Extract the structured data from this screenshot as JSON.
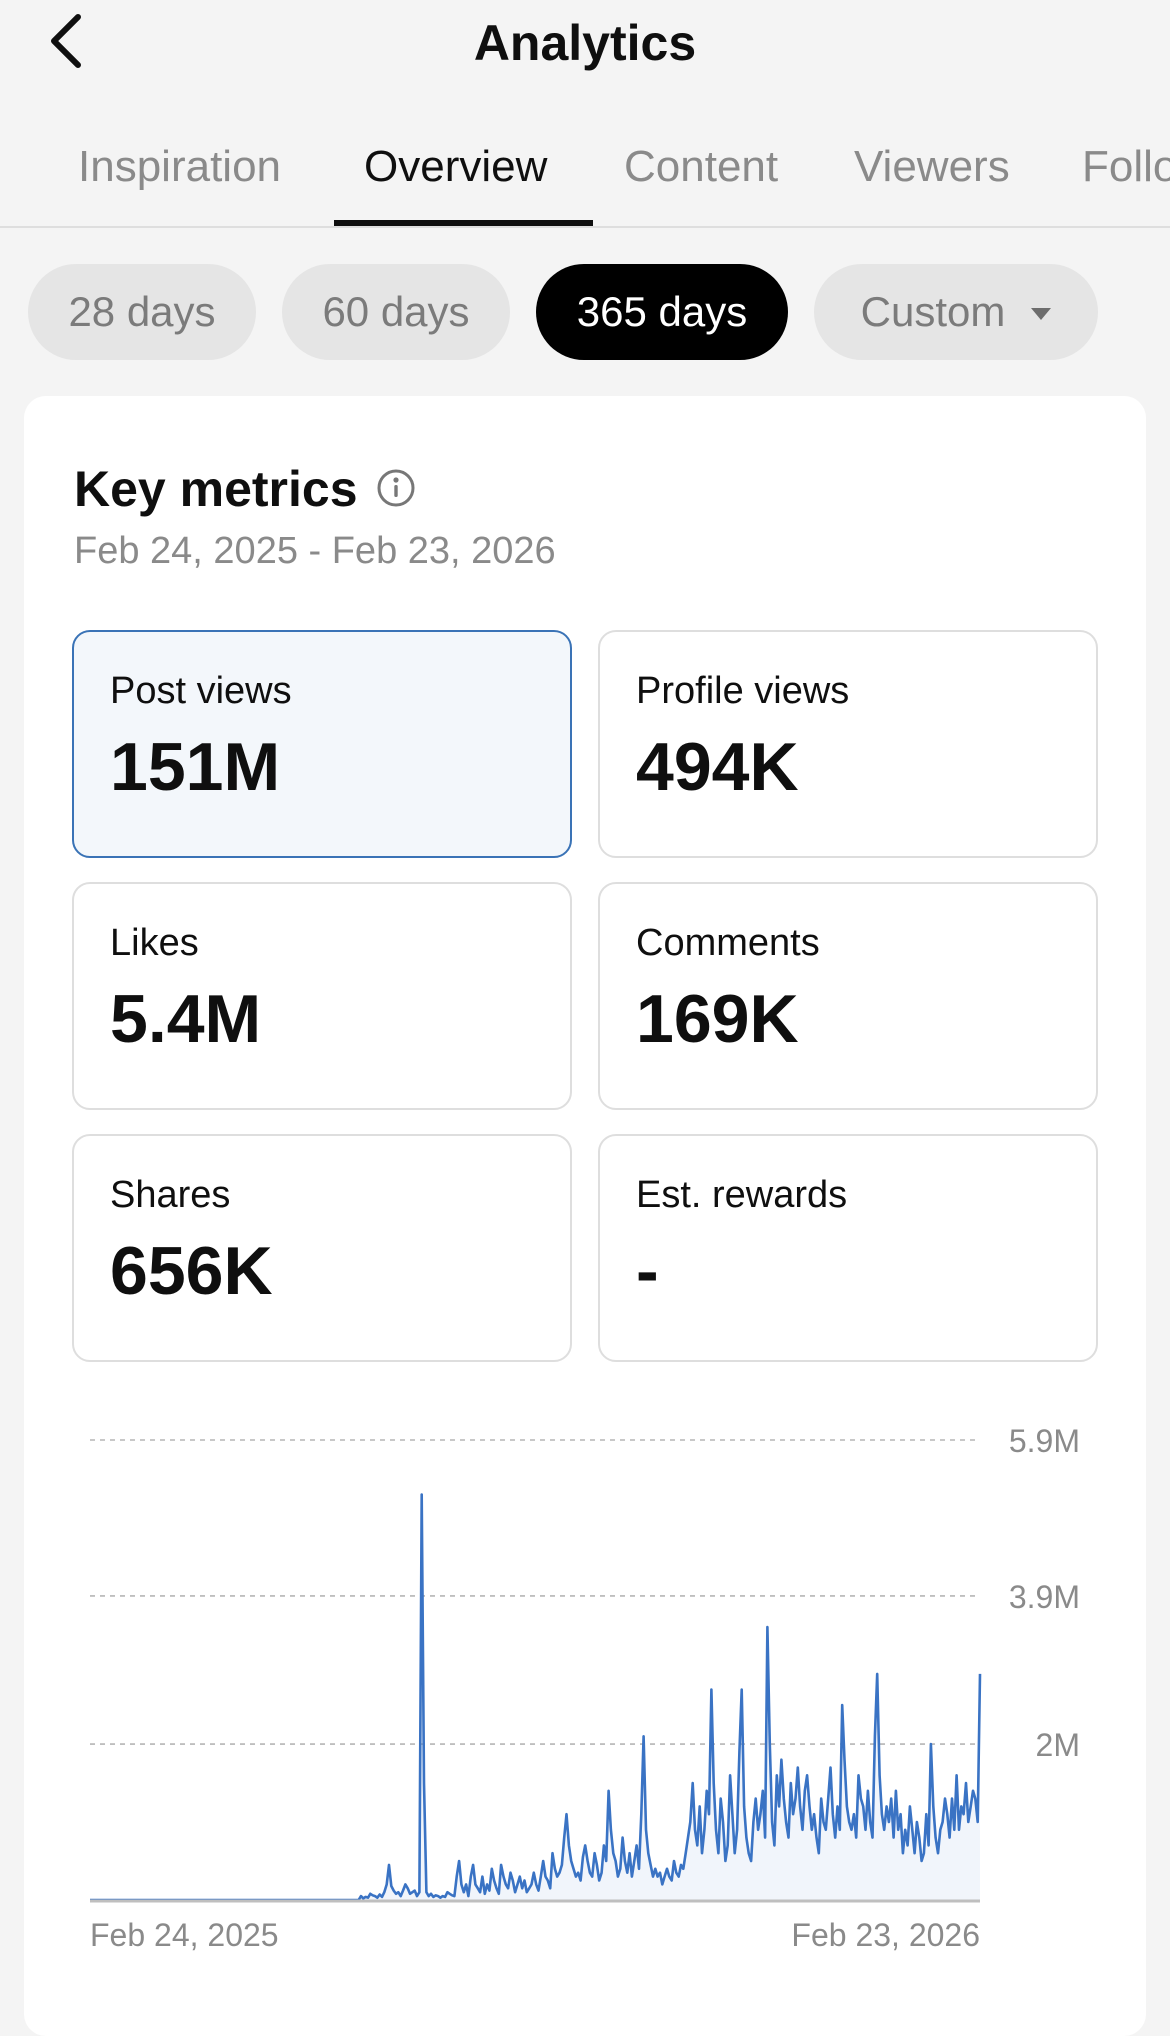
{
  "header": {
    "title": "Analytics",
    "back_icon": "chevron-left-icon"
  },
  "tabs": [
    {
      "label": "Inspiration",
      "active": false
    },
    {
      "label": "Overview",
      "active": true
    },
    {
      "label": "Content",
      "active": false
    },
    {
      "label": "Viewers",
      "active": false
    },
    {
      "label": "Followers",
      "active": false
    }
  ],
  "ranges": [
    {
      "label": "28 days",
      "active": false
    },
    {
      "label": "60 days",
      "active": false
    },
    {
      "label": "365 days",
      "active": true
    },
    {
      "label": "Custom",
      "active": false,
      "has_dropdown": true
    }
  ],
  "key_metrics": {
    "title": "Key metrics",
    "date_range": "Feb 24, 2025 - Feb 23, 2026",
    "items": [
      {
        "label": "Post views",
        "value": "151M",
        "selected": true
      },
      {
        "label": "Profile views",
        "value": "494K",
        "selected": false
      },
      {
        "label": "Likes",
        "value": "5.4M",
        "selected": false
      },
      {
        "label": "Comments",
        "value": "169K",
        "selected": false
      },
      {
        "label": "Shares",
        "value": "656K",
        "selected": false
      },
      {
        "label": "Est. rewards",
        "value": "-",
        "selected": false
      }
    ]
  },
  "colors": {
    "accent": "#3a73c4",
    "active_chip": "#000000",
    "selected_border": "#3a73b6"
  },
  "chart_data": {
    "type": "line",
    "series": [
      {
        "values": [
          0,
          0,
          0,
          0,
          0,
          0,
          0,
          0,
          0,
          0,
          0,
          0,
          0,
          0,
          0,
          0,
          0,
          0,
          0,
          0,
          0,
          0,
          0,
          0,
          0,
          0,
          0,
          0,
          0,
          0,
          0,
          0,
          0,
          0,
          0,
          0,
          0,
          0,
          0,
          0,
          0,
          0,
          0,
          0,
          0,
          0,
          0,
          0,
          0,
          0,
          0,
          0,
          0,
          0,
          0,
          0,
          0,
          0,
          0,
          0,
          0,
          0,
          0,
          0,
          0,
          0,
          0,
          0,
          0,
          0,
          0,
          0,
          0,
          0,
          0,
          0,
          0,
          0,
          0,
          0,
          0,
          0,
          0,
          0,
          0,
          0,
          0,
          0,
          0,
          0,
          0,
          0,
          0,
          0,
          0,
          0,
          0,
          0,
          0,
          0,
          0,
          0,
          0,
          0,
          0,
          0,
          0,
          0,
          0,
          0,
          0,
          0,
          0,
          0,
          0,
          0,
          0.05,
          0.02,
          0.04,
          0.03,
          0.08,
          0.06,
          0.05,
          0.03,
          0.07,
          0.04,
          0.1,
          0.2,
          0.45,
          0.18,
          0.12,
          0.08,
          0.1,
          0.05,
          0.12,
          0.2,
          0.15,
          0.08,
          0.1,
          0.12,
          0.05,
          0.1,
          5.2,
          1.5,
          0.1,
          0.05,
          0.08,
          0.04,
          0.06,
          0.05,
          0.03,
          0.05,
          0.04,
          0.1,
          0.08,
          0.06,
          0.05,
          0.3,
          0.5,
          0.2,
          0.1,
          0.2,
          0.05,
          0.3,
          0.45,
          0.2,
          0.15,
          0.1,
          0.3,
          0.08,
          0.2,
          0.12,
          0.4,
          0.25,
          0.15,
          0.08,
          0.45,
          0.3,
          0.2,
          0.15,
          0.35,
          0.25,
          0.1,
          0.2,
          0.3,
          0.15,
          0.25,
          0.1,
          0.15,
          0.2,
          0.35,
          0.2,
          0.12,
          0.3,
          0.5,
          0.3,
          0.25,
          0.15,
          0.6,
          0.4,
          0.3,
          0.35,
          0.45,
          0.8,
          1.1,
          0.7,
          0.5,
          0.4,
          0.3,
          0.35,
          0.25,
          0.55,
          0.7,
          0.5,
          0.35,
          0.3,
          0.6,
          0.45,
          0.25,
          0.35,
          0.7,
          0.5,
          1.4,
          0.9,
          0.6,
          0.5,
          0.3,
          0.4,
          0.8,
          0.5,
          0.35,
          0.6,
          0.3,
          0.5,
          0.7,
          0.4,
          1.1,
          2.1,
          0.9,
          0.6,
          0.45,
          0.3,
          0.4,
          0.3,
          0.35,
          0.2,
          0.3,
          0.4,
          0.3,
          0.25,
          0.5,
          0.35,
          0.3,
          0.45,
          0.4,
          0.6,
          0.8,
          1.0,
          1.5,
          0.9,
          0.7,
          1.2,
          0.6,
          0.9,
          1.4,
          1.1,
          2.7,
          1.5,
          0.9,
          0.6,
          1.3,
          1.0,
          0.5,
          0.7,
          1.6,
          1.1,
          0.6,
          0.9,
          1.9,
          2.7,
          1.2,
          0.8,
          0.6,
          0.5,
          1.0,
          1.3,
          0.9,
          1.1,
          1.4,
          0.8,
          3.5,
          2.0,
          1.0,
          0.7,
          1.6,
          1.2,
          1.8,
          1.3,
          1.0,
          0.8,
          1.5,
          1.1,
          1.3,
          1.7,
          1.2,
          0.9,
          1.4,
          1.6,
          1.2,
          0.9,
          1.1,
          0.8,
          0.6,
          1.3,
          1.0,
          0.9,
          1.3,
          1.7,
          1.1,
          0.8,
          1.2,
          0.9,
          2.5,
          1.8,
          1.2,
          1.0,
          0.9,
          1.1,
          0.8,
          1.6,
          1.3,
          1.2,
          0.9,
          1.4,
          1.0,
          0.8,
          2.1,
          2.9,
          1.6,
          1.1,
          0.9,
          1.2,
          1.0,
          1.3,
          0.8,
          1.4,
          0.9,
          1.1,
          0.6,
          0.9,
          0.7,
          1.2,
          0.9,
          0.6,
          1.0,
          0.8,
          0.5,
          0.6,
          1.1,
          0.7,
          2.0,
          1.2,
          0.8,
          0.6,
          0.9,
          1.0,
          1.3,
          1.1,
          0.8,
          1.3,
          0.9,
          1.6,
          0.9,
          1.2,
          1.1,
          1.5,
          1.0,
          1.2,
          1.4,
          1.3,
          1.0,
          2.9
        ]
      }
    ],
    "x_tick_labels": [
      "Feb 24, 2025",
      "Feb 23, 2026"
    ],
    "y_tick_labels": [
      "5.9M",
      "3.9M",
      "2M"
    ],
    "ylim": [
      0,
      5.9
    ],
    "grid": true
  }
}
